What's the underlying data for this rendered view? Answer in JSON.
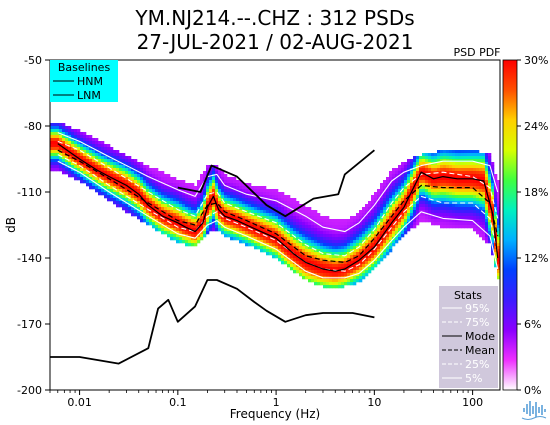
{
  "title_line1": "YM.NJ214.--.CHZ : 312 PSDs",
  "title_line2": "27-JUL-2021 / 02-AUG-2021",
  "chart_data": {
    "type": "heatmap",
    "xlabel": "Frequency (Hz)",
    "ylabel": "dB",
    "xscale": "log",
    "xlim": [
      0.005,
      190
    ],
    "ylim": [
      -200,
      -50
    ],
    "xticks": [
      {
        "value": 0.01,
        "label": "0.01"
      },
      {
        "value": 0.1,
        "label": "0.1"
      },
      {
        "value": 1,
        "label": "1"
      },
      {
        "value": 10,
        "label": "10"
      },
      {
        "value": 100,
        "label": "100"
      }
    ],
    "yticks": [
      {
        "value": -50,
        "label": "-50"
      },
      {
        "value": -80,
        "label": "-80"
      },
      {
        "value": -110,
        "label": "-110"
      },
      {
        "value": -140,
        "label": "-140"
      },
      {
        "value": -170,
        "label": "-170"
      },
      {
        "value": -200,
        "label": "-200"
      }
    ],
    "colorbar": {
      "title": "PSD PDF",
      "ticks": [
        "0%",
        "6%",
        "12%",
        "18%",
        "24%",
        "30%"
      ],
      "range": [
        0,
        30
      ],
      "colors": [
        "#ffffff",
        "#ee30ff",
        "#8a00ff",
        "#3c1cff",
        "#0040ff",
        "#00b0ff",
        "#00f0c0",
        "#40ff40",
        "#d8ff00",
        "#ffd000",
        "#ff5000",
        "#ff0000"
      ]
    },
    "baselines_legend": {
      "title": "Baselines",
      "entries": [
        "HNM",
        "LNM"
      ],
      "background": "#00ffff"
    },
    "stats_legend": {
      "title": "Stats",
      "entries": [
        {
          "label": "95%",
          "style": "solid",
          "color": "#ffffff"
        },
        {
          "label": "75%",
          "style": "dashed",
          "color": "#ffffff"
        },
        {
          "label": "Mode",
          "style": "solid",
          "color": "#000000"
        },
        {
          "label": "Mean",
          "style": "dashed",
          "color": "#000000"
        },
        {
          "label": "25%",
          "style": "dashed",
          "color": "#ffffff"
        },
        {
          "label": "5%",
          "style": "solid",
          "color": "#ffffff"
        }
      ],
      "background": "#d0c8dc"
    },
    "series": [
      {
        "name": "HNM",
        "x": [
          0.1,
          0.17,
          0.22,
          0.4,
          0.8,
          1.24,
          2.4,
          4.3,
          5,
          10
        ],
        "y": [
          -108,
          -110,
          -98,
          -103,
          -116,
          -121,
          -113,
          -111,
          -102,
          -91
        ]
      },
      {
        "name": "LNM",
        "x": [
          0.005,
          0.01,
          0.025,
          0.05,
          0.063,
          0.08,
          0.1,
          0.15,
          0.2,
          0.25,
          0.4,
          0.6,
          0.8,
          1.24,
          2,
          3,
          4,
          5,
          6,
          10
        ],
        "y": [
          -185,
          -185,
          -188,
          -181,
          -163,
          -159,
          -169,
          -162,
          -150,
          -150,
          -154,
          -160,
          -164,
          -169,
          -166,
          -165,
          -165,
          -165,
          -165,
          -167
        ]
      },
      {
        "name": "Mode",
        "x": [
          0.006,
          0.008,
          0.01,
          0.015,
          0.02,
          0.03,
          0.04,
          0.05,
          0.07,
          0.1,
          0.12,
          0.15,
          0.18,
          0.2,
          0.23,
          0.26,
          0.3,
          0.4,
          0.5,
          0.7,
          1,
          1.5,
          2,
          3,
          4,
          5,
          7,
          10,
          15,
          20,
          30,
          40,
          50,
          70,
          100,
          130,
          160,
          180
        ],
        "y": [
          -88,
          -92,
          -95,
          -100,
          -103,
          -107,
          -111,
          -116,
          -121,
          -124,
          -126,
          -128,
          -124,
          -117,
          -112,
          -118,
          -121,
          -123,
          -125,
          -128,
          -131,
          -138,
          -142,
          -145,
          -146,
          -145,
          -141,
          -135,
          -124,
          -117,
          -101,
          -104,
          -103,
          -104,
          -104,
          -105,
          -120,
          -140
        ]
      },
      {
        "name": "Mean",
        "x": [
          0.006,
          0.01,
          0.02,
          0.05,
          0.1,
          0.15,
          0.2,
          0.25,
          0.3,
          0.5,
          1,
          2,
          3,
          5,
          7,
          10,
          15,
          20,
          30,
          50,
          100,
          150,
          180
        ],
        "y": [
          -91,
          -96,
          -104,
          -115,
          -123,
          -125,
          -116,
          -115,
          -119,
          -123,
          -129,
          -139,
          -141,
          -142,
          -139,
          -131,
          -121,
          -114,
          -107,
          -108,
          -108,
          -115,
          -130
        ]
      },
      {
        "name": "95%",
        "x": [
          0.006,
          0.01,
          0.02,
          0.05,
          0.1,
          0.15,
          0.2,
          0.25,
          0.3,
          0.5,
          1,
          2,
          3,
          5,
          7,
          10,
          15,
          20,
          30,
          50,
          100,
          150,
          180
        ],
        "y": [
          -83,
          -87,
          -94,
          -103,
          -109,
          -112,
          -103,
          -102,
          -107,
          -111,
          -114,
          -121,
          -126,
          -128,
          -124,
          -116,
          -105,
          -101,
          -98,
          -96,
          -96,
          -98,
          -110
        ]
      },
      {
        "name": "75%",
        "x": [
          0.006,
          0.01,
          0.02,
          0.05,
          0.1,
          0.15,
          0.2,
          0.25,
          0.3,
          0.5,
          1,
          2,
          3,
          5,
          7,
          10,
          15,
          20,
          30,
          50,
          100,
          150,
          180
        ],
        "y": [
          -87,
          -91,
          -99,
          -110,
          -118,
          -121,
          -111,
          -110,
          -115,
          -119,
          -124,
          -134,
          -138,
          -139,
          -135,
          -127,
          -115,
          -108,
          -102,
          -101,
          -103,
          -108,
          -122
        ]
      },
      {
        "name": "25%",
        "x": [
          0.006,
          0.01,
          0.02,
          0.05,
          0.1,
          0.15,
          0.2,
          0.25,
          0.3,
          0.5,
          1,
          2,
          3,
          5,
          7,
          10,
          15,
          20,
          30,
          50,
          100,
          150,
          180
        ],
        "y": [
          -93,
          -98,
          -107,
          -118,
          -126,
          -128,
          -121,
          -119,
          -122,
          -126,
          -132,
          -142,
          -145,
          -146,
          -143,
          -136,
          -126,
          -119,
          -112,
          -115,
          -115,
          -122,
          -138
        ]
      },
      {
        "name": "5%",
        "x": [
          0.006,
          0.01,
          0.02,
          0.05,
          0.1,
          0.15,
          0.2,
          0.25,
          0.3,
          0.5,
          1,
          2,
          3,
          5,
          7,
          10,
          15,
          20,
          30,
          50,
          100,
          150,
          180
        ],
        "y": [
          -96,
          -101,
          -110,
          -121,
          -129,
          -131,
          -125,
          -123,
          -126,
          -130,
          -136,
          -146,
          -149,
          -149,
          -147,
          -141,
          -132,
          -126,
          -119,
          -122,
          -123,
          -130,
          -145
        ]
      }
    ]
  },
  "logo": "wave-logo-icon"
}
